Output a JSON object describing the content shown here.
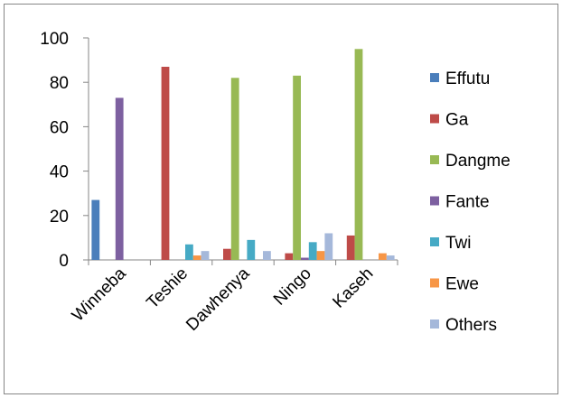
{
  "chart_data": {
    "type": "bar",
    "title": "",
    "xlabel": "",
    "ylabel": "",
    "ylim": [
      0,
      100
    ],
    "yticks": [
      0,
      20,
      40,
      60,
      80,
      100
    ],
    "grid": false,
    "legend_position": "right",
    "categories": [
      "Winneba",
      "Teshie",
      "Dawhenya",
      "Ningo",
      "Kaseh"
    ],
    "series": [
      {
        "name": "Effutu",
        "color": "#4A7EBB",
        "values": [
          27,
          0,
          0,
          0,
          0
        ]
      },
      {
        "name": "Ga",
        "color": "#BE4B48",
        "values": [
          0,
          87,
          5,
          3,
          11
        ]
      },
      {
        "name": "Dangme",
        "color": "#98B954",
        "values": [
          0,
          0,
          82,
          83,
          95
        ]
      },
      {
        "name": "Fante",
        "color": "#7D60A0",
        "values": [
          73,
          0,
          0,
          1,
          0
        ]
      },
      {
        "name": "Twi",
        "color": "#46AAC5",
        "values": [
          0,
          7,
          9,
          8,
          0
        ]
      },
      {
        "name": "Ewe",
        "color": "#F79646",
        "values": [
          0,
          2,
          0,
          4,
          3
        ]
      },
      {
        "name": "Others",
        "color": "#A5B8DA",
        "values": [
          0,
          4,
          4,
          12,
          2
        ]
      }
    ]
  }
}
